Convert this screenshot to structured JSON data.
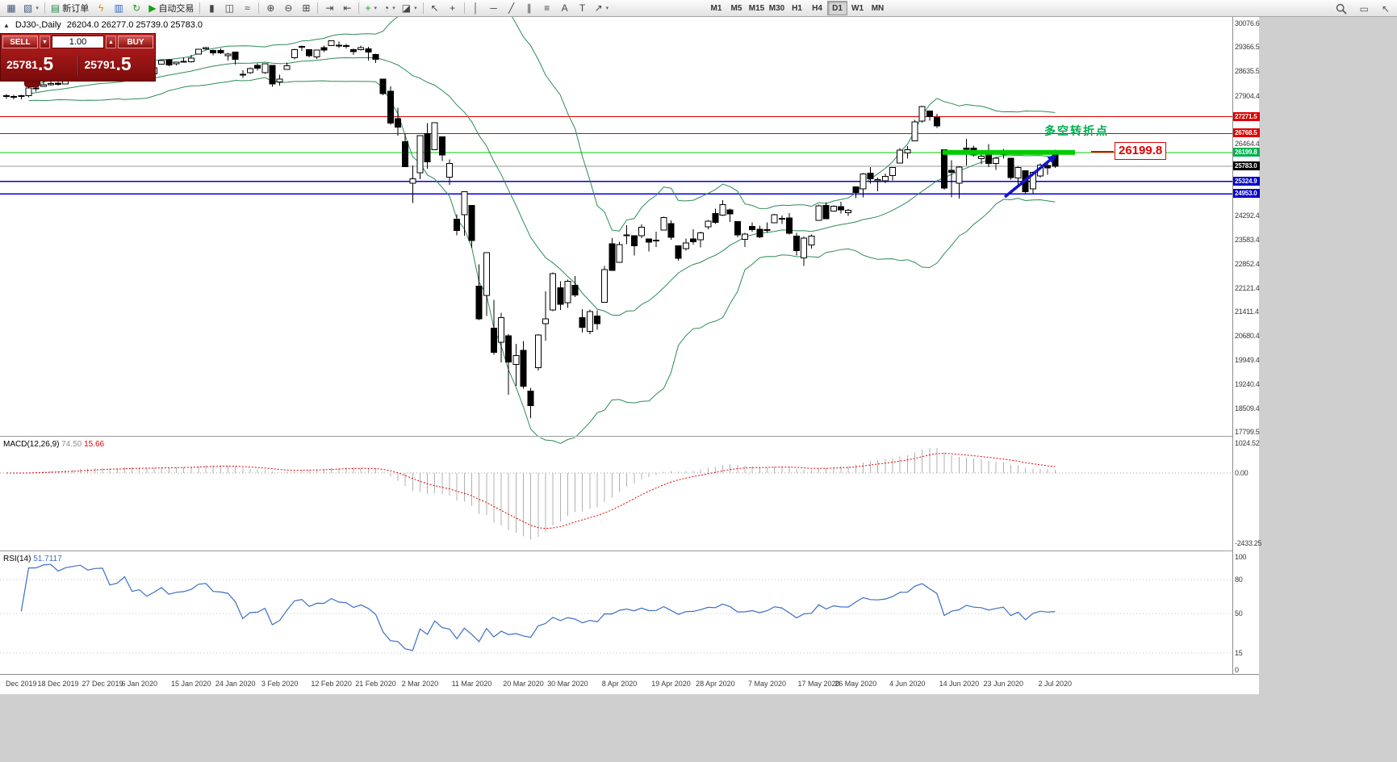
{
  "toolbar": {
    "items": [
      {
        "name": "new-chart-icon",
        "glyph": "▦",
        "color": "#445a77"
      },
      {
        "name": "profiles-icon",
        "glyph": "▧",
        "color": "#445a77",
        "dd": true
      },
      {
        "sep": true
      },
      {
        "name": "new-order-button",
        "glyph": "▤",
        "color": "#2a8a4a",
        "label": "新订单"
      },
      {
        "name": "scripts-icon",
        "glyph": "ϟ",
        "color": "#d99000"
      },
      {
        "name": "market-watch-icon",
        "glyph": "▥",
        "color": "#3366bb"
      },
      {
        "name": "refresh-icon",
        "glyph": "↻",
        "color": "#2a9a2a"
      },
      {
        "name": "autotrade-button",
        "glyph": "▶",
        "color": "#15a015",
        "label": "自动交易"
      },
      {
        "sep": true
      },
      {
        "name": "bar-chart-icon",
        "glyph": "▮",
        "color": "#444"
      },
      {
        "name": "candlestick-chart-icon",
        "glyph": "◫",
        "color": "#444"
      },
      {
        "name": "line-chart-icon",
        "glyph": "≈",
        "color": "#444"
      },
      {
        "sep": true
      },
      {
        "name": "zoom-in-icon",
        "glyph": "⊕",
        "color": "#444"
      },
      {
        "name": "zoom-out-icon",
        "glyph": "⊖",
        "color": "#444"
      },
      {
        "name": "tile-windows-icon",
        "glyph": "⊞",
        "color": "#444"
      },
      {
        "sep": true
      },
      {
        "name": "auto-scroll-icon",
        "glyph": "⇥",
        "color": "#444"
      },
      {
        "name": "chart-shift-icon",
        "glyph": "⇤",
        "color": "#444"
      },
      {
        "sep": true
      },
      {
        "name": "indicators-icon",
        "glyph": "+",
        "color": "#15a015",
        "dd": true
      },
      {
        "name": "periods-icon",
        "glyph": "◔",
        "color": "#444",
        "dd": true
      },
      {
        "name": "templates-icon",
        "glyph": "◪",
        "color": "#444",
        "dd": true
      },
      {
        "sep": true
      },
      {
        "name": "cursor-icon",
        "glyph": "↖",
        "color": "#444"
      },
      {
        "name": "crosshair-icon",
        "glyph": "+",
        "color": "#444"
      },
      {
        "sep": true
      },
      {
        "name": "vertical-line-icon",
        "glyph": "│",
        "color": "#444"
      },
      {
        "name": "horizontal-line-icon",
        "glyph": "─",
        "color": "#444"
      },
      {
        "name": "trendline-icon",
        "glyph": "╱",
        "color": "#444"
      },
      {
        "name": "channel-icon",
        "glyph": "∥",
        "color": "#444"
      },
      {
        "name": "fibonacci-icon",
        "glyph": "≡",
        "color": "#444"
      },
      {
        "name": "text-icon",
        "glyph": "A",
        "color": "#444"
      },
      {
        "name": "text-label-icon",
        "glyph": "T",
        "color": "#444"
      },
      {
        "name": "arrows-icon",
        "glyph": "↗",
        "color": "#444",
        "dd": true
      }
    ],
    "timeframes": {
      "options": [
        "M1",
        "M5",
        "M15",
        "M30",
        "H1",
        "H4",
        "D1",
        "W1",
        "MN"
      ],
      "active": "D1"
    },
    "right_items": [
      {
        "name": "search-icon",
        "magnifier": true
      },
      {
        "name": "data-window-icon",
        "glyph": "▭"
      },
      {
        "name": "cursor-pointer-icon",
        "glyph": "↖"
      }
    ]
  },
  "chart": {
    "title": {
      "collapse_icon": "▲",
      "symbol": "DJ30-,Daily",
      "ohlc": "26204.0 26277.0 25739.0 25783.0"
    },
    "trade_panel": {
      "sell": "SELL",
      "buy": "BUY",
      "volume": "1.00",
      "bid": "25781.5",
      "ask": "25791.5",
      "down_glyph": "▼",
      "up_glyph": "▲"
    },
    "annotation": {
      "text": "多空转折点",
      "price_label": "26199.8"
    },
    "axis": {
      "ticks": [
        "30076.6",
        "29366.5",
        "28635.5",
        "27904.4",
        "26464.4",
        "24292.4",
        "23583.4",
        "22852.4",
        "22121.4",
        "21411.4",
        "20680.4",
        "19949.4",
        "19240.4",
        "18509.4",
        "17799.5"
      ],
      "tags": [
        {
          "price": 27271.5,
          "text": "27271.5",
          "bg": "#dd0000"
        },
        {
          "price": 26768.5,
          "text": "26768.5",
          "bg": "#dd0000"
        },
        {
          "price": 26199.8,
          "text": "26199.8",
          "bg": "#00b050"
        },
        {
          "price": 25783.0,
          "text": "25783.0",
          "bg": "#000000"
        },
        {
          "price": 25324.9,
          "text": "25324.9",
          "bg": "#0000cc"
        },
        {
          "price": 24953.0,
          "text": "24953.0",
          "bg": "#0000cc"
        }
      ]
    },
    "macd": {
      "label": "MACD(12,26,9)",
      "value_main": "74.50",
      "value_signal": "15.66",
      "axis": [
        "1024.52",
        "0.00",
        "-2433.25"
      ]
    },
    "rsi": {
      "label": "RSI(14)",
      "value": "51.7117",
      "axis": [
        "100",
        "80",
        "50",
        "15",
        "0"
      ],
      "levels": [
        80,
        50,
        15
      ]
    },
    "time_axis": [
      {
        "label": "Dec 2019",
        "i": 2
      },
      {
        "label": "18 Dec 2019",
        "i": 7
      },
      {
        "label": "27 Dec 2019",
        "i": 13
      },
      {
        "label": "6 Jan 2020",
        "i": 18
      },
      {
        "label": "15 Jan 2020",
        "i": 25
      },
      {
        "label": "24 Jan 2020",
        "i": 31
      },
      {
        "label": "3 Feb 2020",
        "i": 37
      },
      {
        "label": "12 Feb 2020",
        "i": 44
      },
      {
        "label": "21 Feb 2020",
        "i": 50
      },
      {
        "label": "2 Mar 2020",
        "i": 56
      },
      {
        "label": "11 Mar 2020",
        "i": 63
      },
      {
        "label": "20 Mar 2020",
        "i": 70
      },
      {
        "label": "30 Mar 2020",
        "i": 76
      },
      {
        "label": "8 Apr 2020",
        "i": 83
      },
      {
        "label": "19 Apr 2020",
        "i": 90
      },
      {
        "label": "28 Apr 2020",
        "i": 96
      },
      {
        "label": "7 May 2020",
        "i": 103
      },
      {
        "label": "17 May 2020",
        "i": 110
      },
      {
        "label": "26 May 2020",
        "i": 115
      },
      {
        "label": "4 Jun 2020",
        "i": 122
      },
      {
        "label": "14 Jun 2020",
        "i": 129
      },
      {
        "label": "23 Jun 2020",
        "i": 135
      },
      {
        "label": "2 Jul 2020",
        "i": 142
      }
    ]
  },
  "chart_data": {
    "type": "candlestick",
    "symbol": "DJ30",
    "timeframe": "Daily",
    "title": "DJ30-,Daily",
    "date_range": [
      "9 Dec 2019",
      "2 Jul 2020"
    ],
    "price_axis_range": [
      17799.5,
      30076.6
    ],
    "indicators": {
      "bollinger": {
        "period": 20,
        "deviation": 2,
        "color": "#2e8b57"
      },
      "macd": {
        "fast": 12,
        "slow": 26,
        "signal": 9,
        "current_main": 74.5,
        "current_signal": 15.66,
        "pane_range": [
          -2433.25,
          1024.52
        ]
      },
      "rsi": {
        "period": 14,
        "current": 51.7117,
        "levels": [
          15,
          50,
          80
        ]
      }
    },
    "hlines": [
      {
        "price": 27271.5,
        "color": "#dd0000"
      },
      {
        "price": 26768.5,
        "color": "#dd0000"
      },
      {
        "price": 26199.8,
        "color": "#00cc00"
      },
      {
        "price": 25324.9,
        "color": "#0000dd"
      },
      {
        "price": 24953.0,
        "color": "#0000dd"
      },
      {
        "price": 25783.0,
        "color": "#999999",
        "style": "bid"
      }
    ],
    "highlight_segment": {
      "price": 26199.8,
      "color": "#00cc00"
    },
    "trend_arrow": {
      "color": "#1414cc",
      "direction": "up"
    },
    "candles": [
      [
        27883,
        27949,
        27804,
        27909
      ],
      [
        27879,
        27925,
        27801,
        27882
      ],
      [
        27880,
        27925,
        27800,
        27911
      ],
      [
        27898,
        28225,
        27860,
        28132
      ],
      [
        28123,
        28290,
        28028,
        28135
      ],
      [
        28191,
        28337,
        28191,
        28236
      ],
      [
        28235,
        28338,
        28205,
        28267
      ],
      [
        28278,
        28323,
        28212,
        28239
      ],
      [
        28254,
        28402,
        28254,
        28377
      ],
      [
        28453,
        28525,
        28382,
        28455
      ],
      [
        28479,
        28572,
        28479,
        28551
      ],
      [
        28572,
        28580,
        28503,
        28515
      ],
      [
        28539,
        28624,
        28535,
        28621
      ],
      [
        28675,
        28702,
        28611,
        28645
      ],
      [
        28654,
        28664,
        28428,
        28462
      ],
      [
        28414,
        28547,
        28376,
        28538
      ],
      [
        28639,
        28873,
        28627,
        28869
      ],
      [
        28553,
        28717,
        28500,
        28635
      ],
      [
        28465,
        28708,
        28418,
        28704
      ],
      [
        28640,
        28685,
        28565,
        28584
      ],
      [
        28556,
        28761,
        28522,
        28745
      ],
      [
        28852,
        28988,
        28844,
        28957
      ],
      [
        28989,
        29009,
        28790,
        28824
      ],
      [
        28869,
        28910,
        28819,
        28907
      ],
      [
        28926,
        29054,
        28897,
        28939
      ],
      [
        28925,
        29127,
        28897,
        29030
      ],
      [
        29149,
        29300,
        29149,
        29298
      ],
      [
        29313,
        29374,
        29273,
        29348
      ],
      [
        29269,
        29288,
        29122,
        29196
      ],
      [
        29269,
        29320,
        29150,
        29186
      ],
      [
        29103,
        29189,
        28966,
        29160
      ],
      [
        29212,
        29226,
        28843,
        28990
      ],
      [
        28542,
        28671,
        28440,
        28536
      ],
      [
        28594,
        28750,
        28566,
        28723
      ],
      [
        28820,
        28873,
        28653,
        28734
      ],
      [
        28600,
        28880,
        28560,
        28859
      ],
      [
        28813,
        28813,
        28169,
        28256
      ],
      [
        28320,
        28530,
        28209,
        28400
      ],
      [
        28697,
        28905,
        28697,
        28808
      ],
      [
        29049,
        29308,
        29000,
        29291
      ],
      [
        29355,
        29409,
        29246,
        29380
      ],
      [
        29287,
        29287,
        29056,
        29103
      ],
      [
        29068,
        29293,
        29008,
        29277
      ],
      [
        29347,
        29415,
        29210,
        29276
      ],
      [
        29406,
        29568,
        29406,
        29551
      ],
      [
        29419,
        29535,
        29332,
        29423
      ],
      [
        29412,
        29462,
        29325,
        29398
      ],
      [
        29282,
        29330,
        29133,
        29232
      ],
      [
        29287,
        29409,
        29266,
        29348
      ],
      [
        29309,
        29368,
        28960,
        29220
      ],
      [
        29147,
        29169,
        28892,
        28992
      ],
      [
        28403,
        28403,
        27912,
        27961
      ],
      [
        28043,
        28184,
        27030,
        27081
      ],
      [
        27216,
        27543,
        26704,
        26958
      ],
      [
        26526,
        26777,
        25753,
        25766
      ],
      [
        25275,
        25805,
        24681,
        25409
      ],
      [
        25591,
        26708,
        25392,
        26703
      ],
      [
        26763,
        27085,
        25707,
        25917
      ],
      [
        26286,
        27102,
        26286,
        27091
      ],
      [
        26672,
        26672,
        25944,
        26121
      ],
      [
        25458,
        25994,
        25227,
        25865
      ],
      [
        24193,
        24334,
        23707,
        23851
      ],
      [
        24332,
        25020,
        23690,
        25018
      ],
      [
        24604,
        24604,
        23328,
        23553
      ],
      [
        22184,
        22837,
        21154,
        21201
      ],
      [
        21899,
        23189,
        21285,
        23186
      ],
      [
        20917,
        21768,
        20117,
        20188
      ],
      [
        20487,
        21379,
        19882,
        21237
      ],
      [
        20688,
        20738,
        18917,
        19899
      ],
      [
        19830,
        20442,
        19177,
        20087
      ],
      [
        20253,
        20531,
        19094,
        19174
      ],
      [
        19028,
        19121,
        18214,
        18592
      ],
      [
        19722,
        20738,
        19649,
        20705
      ],
      [
        21050,
        22020,
        20538,
        21200
      ],
      [
        21468,
        22595,
        21427,
        22552
      ],
      [
        22131,
        22327,
        21469,
        21637
      ],
      [
        21678,
        22378,
        21522,
        22327
      ],
      [
        22208,
        22482,
        21852,
        21917
      ],
      [
        21227,
        21487,
        20784,
        20944
      ],
      [
        20819,
        21477,
        20735,
        21413
      ],
      [
        21285,
        21447,
        20863,
        21053
      ],
      [
        21693,
        22783,
        21693,
        22680
      ],
      [
        23449,
        23617,
        22634,
        22654
      ],
      [
        22898,
        23513,
        22886,
        23434
      ],
      [
        23690,
        24009,
        23442,
        23719
      ],
      [
        23698,
        23698,
        23096,
        23391
      ],
      [
        23690,
        24041,
        23618,
        23950
      ],
      [
        23600,
        23613,
        23219,
        23504
      ],
      [
        23563,
        23816,
        23356,
        23537
      ],
      [
        23869,
        24264,
        23869,
        24242
      ],
      [
        24062,
        24151,
        23576,
        23650
      ],
      [
        23393,
        23393,
        22941,
        23018
      ],
      [
        23307,
        23613,
        23248,
        23476
      ],
      [
        23594,
        23885,
        23427,
        23515
      ],
      [
        23578,
        23818,
        23338,
        23775
      ],
      [
        23966,
        24174,
        23892,
        24134
      ],
      [
        24361,
        24511,
        24048,
        24102
      ],
      [
        24314,
        24765,
        24290,
        24634
      ],
      [
        24473,
        24509,
        24106,
        24346
      ],
      [
        24121,
        24122,
        23645,
        23724
      ],
      [
        23581,
        23779,
        23361,
        23749
      ],
      [
        23978,
        24094,
        23816,
        23883
      ],
      [
        23893,
        23995,
        23620,
        23665
      ],
      [
        23881,
        24094,
        23786,
        23876
      ],
      [
        24085,
        24349,
        24085,
        24331
      ],
      [
        24206,
        24308,
        24052,
        24222
      ],
      [
        24232,
        24370,
        23728,
        23765
      ],
      [
        23686,
        23775,
        23096,
        23248
      ],
      [
        23023,
        23666,
        22790,
        23625
      ],
      [
        23410,
        23731,
        23302,
        23685
      ],
      [
        24159,
        24625,
        24159,
        24597
      ],
      [
        24601,
        24702,
        24198,
        24207
      ],
      [
        24436,
        24606,
        24436,
        24576
      ],
      [
        24564,
        24718,
        24358,
        24474
      ],
      [
        24383,
        24491,
        24294,
        24465
      ],
      [
        25169,
        25180,
        24828,
        24995
      ],
      [
        25099,
        25570,
        24843,
        25548
      ],
      [
        25573,
        25758,
        25266,
        25401
      ],
      [
        25345,
        25441,
        25032,
        25383
      ],
      [
        25343,
        25559,
        25277,
        25475
      ],
      [
        25498,
        25763,
        25361,
        25743
      ],
      [
        25880,
        26326,
        25880,
        26270
      ],
      [
        26188,
        26384,
        26011,
        26282
      ],
      [
        26542,
        27181,
        26542,
        27111
      ],
      [
        27144,
        27602,
        27097,
        27572
      ],
      [
        27447,
        27447,
        27151,
        27272
      ],
      [
        27250,
        27355,
        26938,
        26990
      ],
      [
        26282,
        26294,
        25082,
        25128
      ],
      [
        25659,
        25965,
        24843,
        25605
      ],
      [
        25270,
        25783,
        24817,
        25763
      ],
      [
        26326,
        26611,
        25811,
        26290
      ],
      [
        26326,
        26400,
        26068,
        26120
      ],
      [
        26016,
        26154,
        25848,
        26080
      ],
      [
        26213,
        26451,
        25759,
        25871
      ],
      [
        25865,
        26059,
        25667,
        26025
      ],
      [
        26160,
        26298,
        26017,
        26156
      ],
      [
        26021,
        26021,
        25377,
        25446
      ],
      [
        25434,
        25775,
        25210,
        25746
      ],
      [
        25653,
        25653,
        24971,
        25016
      ],
      [
        25100,
        25620,
        24972,
        25596
      ],
      [
        25492,
        25869,
        25448,
        25813
      ],
      [
        25806,
        25904,
        25524,
        25735
      ],
      [
        26204,
        26277,
        25739,
        25783
      ]
    ]
  }
}
